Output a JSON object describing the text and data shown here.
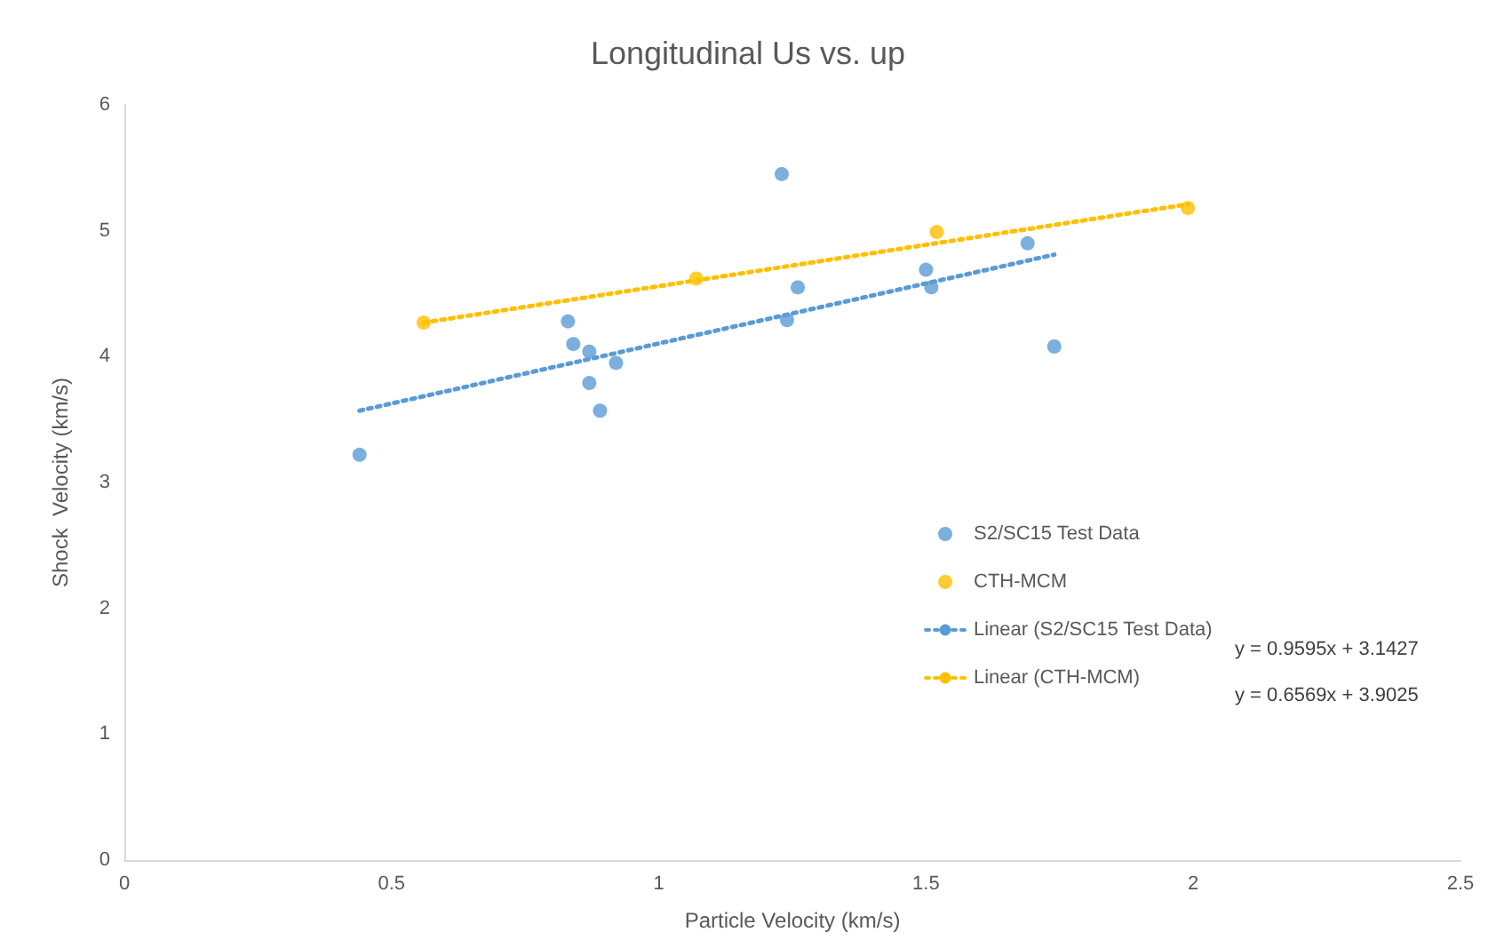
{
  "chart_data": {
    "type": "scatter",
    "title": "Longitudinal Us vs. up",
    "xlabel": "Particle Velocity (km/s)",
    "ylabel": "Shock  Velocity (km/s)",
    "xlim": [
      0,
      2.5
    ],
    "xticks": [
      0,
      0.5,
      1,
      1.5,
      2,
      2.5
    ],
    "ylim": [
      0,
      6
    ],
    "yticks": [
      0,
      1,
      2,
      3,
      4,
      5,
      6
    ],
    "grid": false,
    "legend": "right",
    "marker": "circle",
    "series": [
      {
        "name": "S2/SC15 Test Data",
        "color": "#5b9bd5",
        "x": [
          0.44,
          0.83,
          0.84,
          0.87,
          0.87,
          0.89,
          0.92,
          1.23,
          1.24,
          1.26,
          1.5,
          1.51,
          1.69,
          1.74
        ],
        "values": [
          3.22,
          4.28,
          4.1,
          4.04,
          3.79,
          3.57,
          3.95,
          5.45,
          4.29,
          4.55,
          4.69,
          4.55,
          4.9,
          4.08
        ]
      },
      {
        "name": "CTH-MCM",
        "color": "#ffc000",
        "x": [
          0.56,
          1.07,
          1.52,
          1.99
        ],
        "values": [
          4.27,
          4.62,
          4.99,
          5.18
        ]
      },
      {
        "name": "Linear (S2/SC15 Test Data)",
        "type": "line",
        "line_style": "dotted",
        "marker": "none",
        "color": "#5b9bd5",
        "x": [
          0.44,
          1.74
        ],
        "values": [
          3.57,
          4.81
        ]
      },
      {
        "name": "Linear (CTH-MCM)",
        "type": "line",
        "line_style": "dotted",
        "marker": "none",
        "color": "#ffc000",
        "x": [
          0.56,
          1.99
        ],
        "values": [
          4.27,
          5.21
        ]
      }
    ],
    "annotations": [
      "y = 0.9595x + 3.1427",
      "y = 0.6569x + 3.9025"
    ]
  }
}
